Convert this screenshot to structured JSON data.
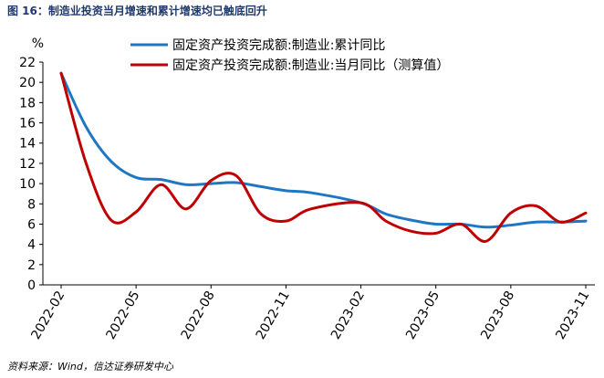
{
  "figure_title": "图 16：制造业投资当月增速和累计增速均已触底回升",
  "source_note": "资料来源：Wind，信达证券研发中心",
  "chart_data": {
    "type": "line",
    "ylabel": "%",
    "ylim": [
      0,
      22
    ],
    "yticks": [
      0,
      2,
      4,
      6,
      8,
      10,
      12,
      14,
      16,
      18,
      20,
      22
    ],
    "x": [
      "2022-02",
      "2022-03",
      "2022-04",
      "2022-05",
      "2022-06",
      "2022-07",
      "2022-08",
      "2022-09",
      "2022-10",
      "2022-11",
      "2022-12",
      "2023-01",
      "2023-02",
      "2023-03",
      "2023-04",
      "2023-05",
      "2023-06",
      "2023-07",
      "2023-08",
      "2023-09",
      "2023-10",
      "2023-11"
    ],
    "xtick_labels": [
      "2022-02",
      "2022-05",
      "2022-08",
      "2022-11",
      "2023-02",
      "2023-05",
      "2023-08",
      "2023-11"
    ],
    "legend_position": "top",
    "grid": false,
    "series": [
      {
        "name": "固定资产投资完成额:制造业:累计同比",
        "color": "#1f77c4",
        "values": [
          20.9,
          15.6,
          12.2,
          10.6,
          10.4,
          9.9,
          10.0,
          10.1,
          9.7,
          9.3,
          9.1,
          null,
          8.1,
          7.0,
          6.4,
          6.0,
          6.0,
          5.7,
          5.9,
          6.2,
          6.2,
          6.3
        ]
      },
      {
        "name": "固定资产投资完成额:制造业:当月同比（测算值）",
        "color": "#c00000",
        "values": [
          20.9,
          12.0,
          6.4,
          7.2,
          9.9,
          7.5,
          10.3,
          10.8,
          7.0,
          6.3,
          7.5,
          null,
          8.1,
          6.3,
          5.3,
          5.1,
          6.0,
          4.3,
          7.1,
          7.8,
          6.2,
          7.1
        ]
      }
    ]
  }
}
